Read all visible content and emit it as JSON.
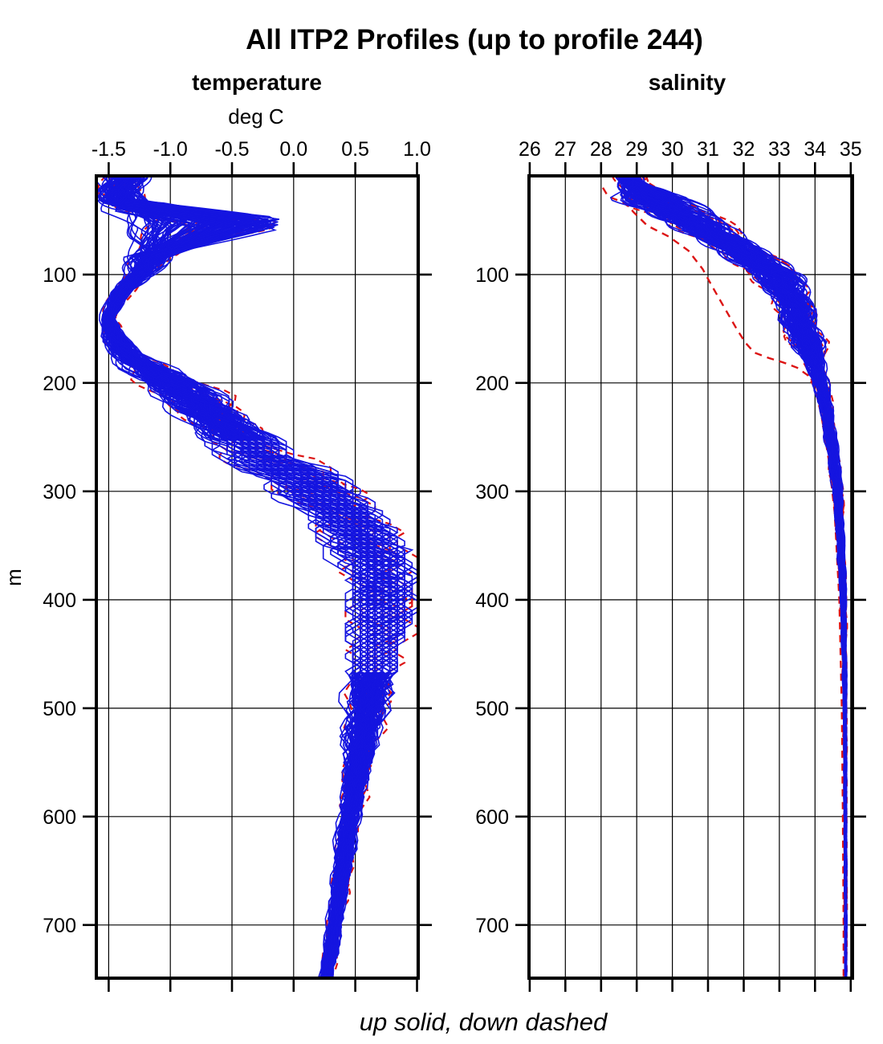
{
  "title": "All ITP2 Profiles (up to profile 244)",
  "caption": "up solid, down dashed",
  "colors": {
    "up_profile": "#1515E0",
    "down_profile": "#DC1414",
    "axis": "#000000",
    "background": "#FFFFFF"
  },
  "chart_data": {
    "type": "line",
    "title": "All ITP2 Profiles (up to profile 244)",
    "n_profiles": 244,
    "line_key": {
      "up": "solid blue",
      "down": "dashed red"
    },
    "ylabel": "m",
    "ylim": [
      9,
      749
    ],
    "yticks": [
      100,
      200,
      300,
      400,
      500,
      600,
      700
    ],
    "ytick_labels": [
      "100",
      "200",
      "300",
      "400",
      "500",
      "600",
      "700"
    ],
    "grid": true,
    "tick_direction": "out",
    "x_axis_position": "top",
    "profiles_drawn": {
      "up": 120,
      "down": 12
    },
    "panels": [
      {
        "title": "temperature",
        "xlabel": "deg C",
        "xlim": [
          -1.6,
          1.01
        ],
        "xticks": [
          -1.5,
          -1.0,
          -0.5,
          0.0,
          0.5,
          1.0
        ],
        "xtick_labels": [
          "-1.5",
          "-1.0",
          "-0.5",
          "0.0",
          "0.5",
          "1.0"
        ],
        "center_profile": [
          [
            9,
            -1.38
          ],
          [
            22,
            -1.42
          ],
          [
            33,
            -1.4
          ],
          [
            45,
            -1.33
          ],
          [
            55,
            -1.3
          ],
          [
            68,
            -1.23
          ],
          [
            82,
            -1.16
          ],
          [
            100,
            -1.25
          ],
          [
            118,
            -1.42
          ],
          [
            140,
            -1.51
          ],
          [
            158,
            -1.46
          ],
          [
            175,
            -1.35
          ],
          [
            195,
            -1.08
          ],
          [
            215,
            -0.82
          ],
          [
            240,
            -0.56
          ],
          [
            265,
            -0.32
          ],
          [
            290,
            0.05
          ],
          [
            315,
            0.33
          ],
          [
            340,
            0.52
          ],
          [
            365,
            0.65
          ],
          [
            390,
            0.71
          ],
          [
            415,
            0.7
          ],
          [
            450,
            0.65
          ],
          [
            500,
            0.58
          ],
          [
            550,
            0.52
          ],
          [
            600,
            0.45
          ],
          [
            650,
            0.39
          ],
          [
            700,
            0.33
          ],
          [
            749,
            0.26
          ]
        ],
        "halfwidth": [
          [
            9,
            0.2
          ],
          [
            22,
            0.18
          ],
          [
            33,
            0.2
          ],
          [
            45,
            0.22
          ],
          [
            55,
            0.22
          ],
          [
            68,
            0.18
          ],
          [
            82,
            0.18
          ],
          [
            100,
            0.12
          ],
          [
            118,
            0.08
          ],
          [
            140,
            0.055
          ],
          [
            158,
            0.1
          ],
          [
            175,
            0.13
          ],
          [
            195,
            0.25
          ],
          [
            215,
            0.28
          ],
          [
            240,
            0.28
          ],
          [
            265,
            0.3
          ],
          [
            290,
            0.36
          ],
          [
            315,
            0.33
          ],
          [
            340,
            0.32
          ],
          [
            365,
            0.3
          ],
          [
            390,
            0.28
          ],
          [
            415,
            0.26
          ],
          [
            450,
            0.21
          ],
          [
            500,
            0.17
          ],
          [
            550,
            0.12
          ],
          [
            600,
            0.085
          ],
          [
            650,
            0.075
          ],
          [
            700,
            0.065
          ],
          [
            749,
            0.05
          ]
        ],
        "spike": {
          "top": 33,
          "bottom": 84,
          "peak_depth_range": [
            44,
            58
          ],
          "peak_temp_range": [
            -1.35,
            -0.1
          ]
        },
        "staircase_zone": [
          253,
          470
        ]
      },
      {
        "title": "salinity",
        "xlabel": "",
        "xlim": [
          25.98,
          35.05
        ],
        "xticks": [
          26,
          27,
          28,
          29,
          30,
          31,
          32,
          33,
          34,
          35
        ],
        "xtick_labels": [
          "26",
          "27",
          "28",
          "29",
          "30",
          "31",
          "32",
          "33",
          "34",
          "35"
        ],
        "center_profile": [
          [
            9,
            28.8
          ],
          [
            18,
            28.9
          ],
          [
            30,
            29.45
          ],
          [
            42,
            30.1
          ],
          [
            55,
            30.75
          ],
          [
            70,
            31.6
          ],
          [
            85,
            32.2
          ],
          [
            100,
            32.9
          ],
          [
            115,
            33.2
          ],
          [
            130,
            33.45
          ],
          [
            145,
            33.6
          ],
          [
            160,
            33.75
          ],
          [
            175,
            33.9
          ],
          [
            190,
            34.05
          ],
          [
            205,
            34.2
          ],
          [
            230,
            34.35
          ],
          [
            260,
            34.48
          ],
          [
            300,
            34.63
          ],
          [
            350,
            34.73
          ],
          [
            400,
            34.79
          ],
          [
            450,
            34.82
          ],
          [
            500,
            34.84
          ],
          [
            600,
            34.85
          ],
          [
            700,
            34.86
          ],
          [
            749,
            34.86
          ]
        ],
        "halfwidth": [
          [
            9,
            0.38
          ],
          [
            18,
            0.45
          ],
          [
            30,
            0.95
          ],
          [
            42,
            0.85
          ],
          [
            55,
            0.78
          ],
          [
            70,
            0.7
          ],
          [
            85,
            0.7
          ],
          [
            100,
            0.75
          ],
          [
            115,
            0.6
          ],
          [
            130,
            0.5
          ],
          [
            145,
            0.45
          ],
          [
            160,
            0.5
          ],
          [
            175,
            0.33
          ],
          [
            190,
            0.25
          ],
          [
            205,
            0.21
          ],
          [
            230,
            0.17
          ],
          [
            260,
            0.15
          ],
          [
            300,
            0.13
          ],
          [
            350,
            0.1
          ],
          [
            400,
            0.08
          ],
          [
            450,
            0.06
          ],
          [
            500,
            0.045
          ],
          [
            600,
            0.035
          ],
          [
            700,
            0.03
          ],
          [
            749,
            0.025
          ]
        ],
        "outlier_down_profile": [
          [
            20,
            28.05
          ],
          [
            28,
            28.2
          ],
          [
            35,
            28.75
          ],
          [
            42,
            28.9
          ],
          [
            55,
            29.3
          ],
          [
            65,
            29.9
          ],
          [
            78,
            30.45
          ],
          [
            95,
            30.85
          ],
          [
            110,
            31.1
          ],
          [
            130,
            31.45
          ],
          [
            150,
            31.8
          ],
          [
            163,
            32.05
          ],
          [
            172,
            32.3
          ],
          [
            177,
            32.7
          ],
          [
            181,
            33.1
          ],
          [
            186,
            33.5
          ],
          [
            193,
            33.8
          ],
          [
            205,
            34.0
          ],
          [
            230,
            34.18
          ],
          [
            270,
            34.38
          ],
          [
            320,
            34.55
          ],
          [
            400,
            34.68
          ],
          [
            500,
            34.75
          ],
          [
            600,
            34.78
          ],
          [
            700,
            34.8
          ],
          [
            749,
            34.8
          ]
        ]
      }
    ]
  }
}
